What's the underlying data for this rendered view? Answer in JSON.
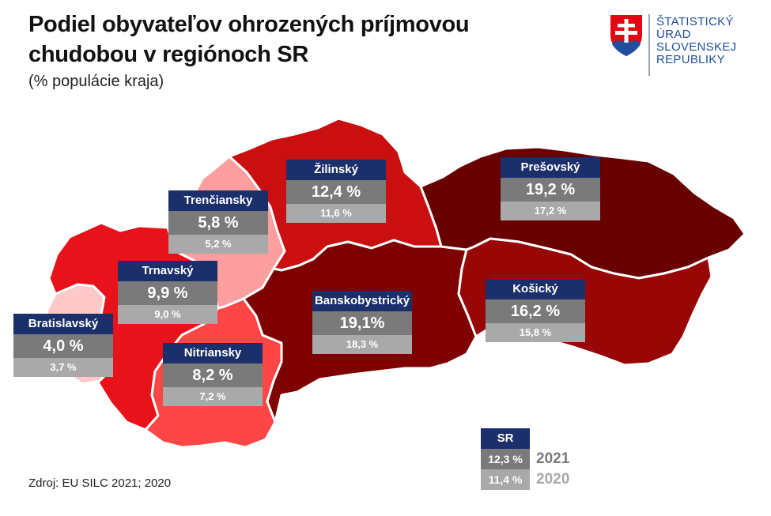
{
  "header": {
    "title_line1": "Podiel obyvateľov ohrozených príjmovou",
    "title_line2": "chudobou v regiónoch SR",
    "subtitle": "(% populácie kraja)"
  },
  "logo": {
    "line1": "ŠTATISTICKÝ",
    "line2": "ÚRAD",
    "line3": "SLOVENSKEJ",
    "line4": "REPUBLIKY"
  },
  "source": "Zdroj: EU SILC 2021; 2020",
  "colors": {
    "label_header": "#1b2f6b",
    "value_2021": "#7a7a7a",
    "value_2020": "#a9a9a9",
    "logo_blue": "#1f4e9c"
  },
  "regions": {
    "bratislavsky": {
      "name": "Bratislavský",
      "v2021": "4,0 %",
      "v2020": "3,7 %",
      "color": "#ffc9c9"
    },
    "trnavsky": {
      "name": "Trnavský",
      "v2021": "9,9 %",
      "v2020": "9,0 %",
      "color": "#e8121a"
    },
    "trenciansky": {
      "name": "Trenčiansky",
      "v2021": "5,8 %",
      "v2020": "5,2 %",
      "color": "#ff9e9e"
    },
    "nitriansky": {
      "name": "Nitriansky",
      "v2021": "8,2 %",
      "v2020": "7,2 %",
      "color": "#ff4646"
    },
    "zilinsky": {
      "name": "Žilinský",
      "v2021": "12,4 %",
      "v2020": "11,6 %",
      "color": "#c90f0f"
    },
    "banskobystricky": {
      "name": "Banskobystrický",
      "v2021": "19,1%",
      "v2020": "18,3 %",
      "color": "#7e0000"
    },
    "presovsky": {
      "name": "Prešovský",
      "v2021": "19,2 %",
      "v2020": "17,2 %",
      "color": "#690000"
    },
    "kosicky": {
      "name": "Košický",
      "v2021": "16,2 %",
      "v2020": "15,8 %",
      "color": "#990606"
    }
  },
  "sr": {
    "name": "SR",
    "v2021": "12,3 %",
    "v2020": "11,4 %",
    "year2021": "2021",
    "year2020": "2020"
  }
}
